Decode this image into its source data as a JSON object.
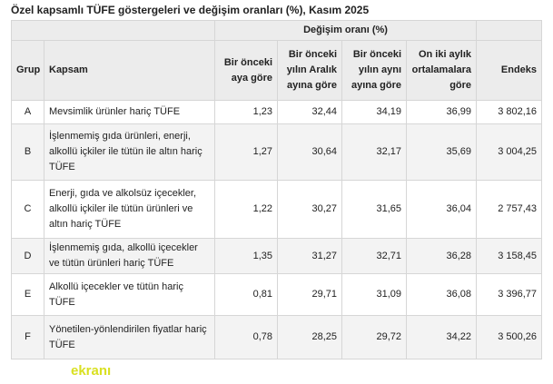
{
  "title": "Özel kapsamlı TÜFE göstergeleri ve değişim oranları (%), Kasım 2025",
  "table": {
    "group_header": "Değişim oranı (%)",
    "columns": [
      "Grup",
      "Kapsam",
      "Bir önceki aya göre",
      "Bir önceki yılın Aralık ayına göre",
      "Bir önceki yılın aynı ayına göre",
      "On iki aylık ortalamalara göre",
      "Endeks"
    ],
    "rows": [
      [
        "A",
        "Mevsimlik ürünler hariç TÜFE",
        "1,23",
        "32,44",
        "34,19",
        "36,99",
        "3 802,16"
      ],
      [
        "B",
        "İşlenmemiş gıda ürünleri, enerji, alkollü içkiler ile tütün ile altın hariç TÜFE",
        "1,27",
        "30,64",
        "32,17",
        "35,69",
        "3 004,25"
      ],
      [
        "C",
        "Enerji, gıda ve alkolsüz içecekler, alkollü içkiler ile tütün ürünleri ve altın hariç TÜFE",
        "1,22",
        "30,27",
        "31,65",
        "36,04",
        "2 757,43"
      ],
      [
        "D",
        "İşlenmemiş gıda, alkollü içecekler ve tütün ürünleri hariç TÜFE",
        "1,35",
        "31,27",
        "32,71",
        "36,28",
        "3 158,45"
      ],
      [
        "E",
        "Alkollü içecekler ve tütün hariç TÜFE",
        "0,81",
        "29,71",
        "31,09",
        "36,08",
        "3 396,77"
      ],
      [
        "F",
        "Yönetilen-yönlendirilen fiyatlar hariç TÜFE",
        "0,78",
        "28,25",
        "29,72",
        "34,22",
        "3 500,26"
      ]
    ]
  },
  "logo": "ekranı"
}
